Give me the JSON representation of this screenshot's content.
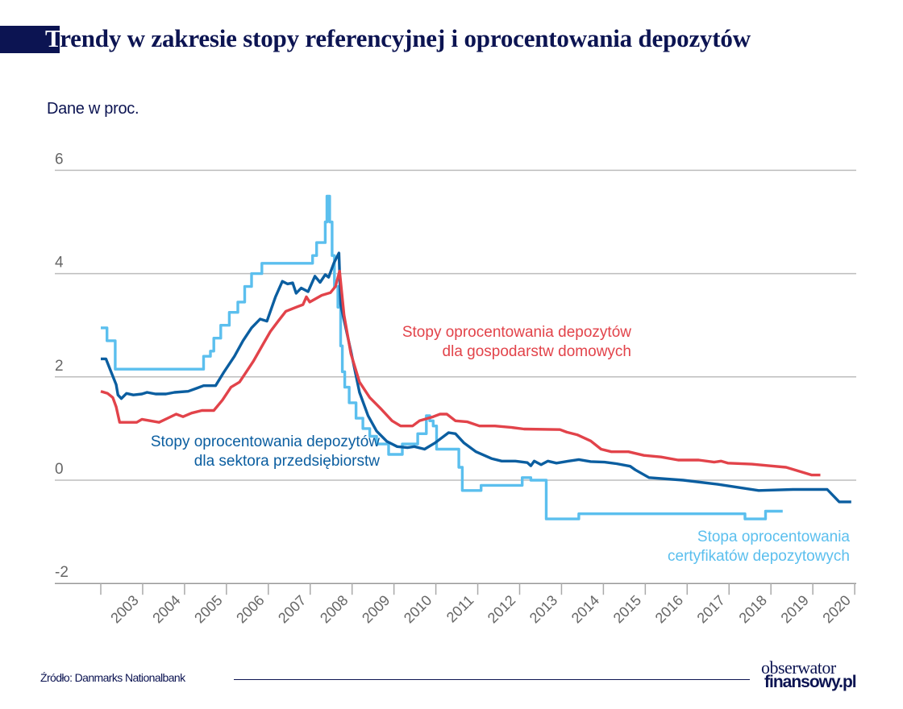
{
  "header": {
    "title_first_letter": "T",
    "title_rest": "rendy w zakresie stopy referencyjnej i oprocentowania depozytów",
    "subtitle": "Dane w proc."
  },
  "footer": {
    "source": "Źródło: Danmarks Nationalbank",
    "logo_line1": "obserwator",
    "logo_line2": "finansowy.pl"
  },
  "colors": {
    "title": "#0c1452",
    "households": "#e2434a",
    "corporate": "#0b5ea0",
    "certificates": "#5bbfee"
  },
  "chart_data": {
    "type": "line",
    "title": "Trendy w zakresie stopy referencyjnej i oprocentowania depozytów",
    "ylabel": "Dane w proc.",
    "xlabel": "",
    "ylim": [
      -2,
      6
    ],
    "xlim": [
      2002.0,
      2020.0
    ],
    "yticks": [
      6,
      4,
      2,
      0,
      -2
    ],
    "ytick_labels": [
      "6",
      "4",
      "2",
      "0",
      "-2"
    ],
    "xtick_labels": [
      "2003",
      "2004",
      "2005",
      "2006",
      "2007",
      "2008",
      "2009",
      "2010",
      "2011",
      "2012",
      "2013",
      "2014",
      "2015",
      "2016",
      "2017",
      "2018",
      "2019",
      "2020"
    ],
    "grid": true,
    "legend": "inline annotations",
    "series": [
      {
        "name": "Stopa oprocentowania certyfikatów depozytowych",
        "key": "certificates",
        "step": true,
        "annotation": [
          "Stopa oprocentowania",
          "certyfikatów depozytowych"
        ],
        "points": [
          [
            2002.0,
            2.95
          ],
          [
            2002.18,
            2.7
          ],
          [
            2002.42,
            2.15
          ],
          [
            2005.0,
            2.15
          ],
          [
            2005.0,
            2.4
          ],
          [
            2005.2,
            2.5
          ],
          [
            2005.3,
            2.75
          ],
          [
            2005.5,
            3.0
          ],
          [
            2005.75,
            3.25
          ],
          [
            2006.0,
            3.45
          ],
          [
            2006.2,
            3.75
          ],
          [
            2006.4,
            4.0
          ],
          [
            2006.7,
            4.2
          ],
          [
            2008.0,
            4.2
          ],
          [
            2008.18,
            4.35
          ],
          [
            2008.3,
            4.6
          ],
          [
            2008.55,
            5.0
          ],
          [
            2008.6,
            5.5
          ],
          [
            2008.68,
            5.0
          ],
          [
            2008.75,
            4.35
          ],
          [
            2008.82,
            3.75
          ],
          [
            2008.92,
            3.35
          ],
          [
            2009.0,
            2.6
          ],
          [
            2009.05,
            2.1
          ],
          [
            2009.12,
            1.8
          ],
          [
            2009.25,
            1.5
          ],
          [
            2009.45,
            1.2
          ],
          [
            2009.65,
            1.0
          ],
          [
            2009.85,
            0.85
          ],
          [
            2010.05,
            0.7
          ],
          [
            2010.4,
            0.5
          ],
          [
            2010.8,
            0.7
          ],
          [
            2011.25,
            0.9
          ],
          [
            2011.5,
            1.25
          ],
          [
            2011.6,
            1.15
          ],
          [
            2011.7,
            1.05
          ],
          [
            2011.8,
            0.6
          ],
          [
            2012.45,
            0.25
          ],
          [
            2012.55,
            -0.2
          ],
          [
            2013.1,
            -0.1
          ],
          [
            2014.3,
            0.05
          ],
          [
            2014.55,
            0.0
          ],
          [
            2015.0,
            -0.75
          ],
          [
            2015.95,
            -0.65
          ],
          [
            2020.8,
            -0.75
          ],
          [
            2021.4,
            -0.6
          ],
          [
            2021.9,
            -0.6
          ]
        ]
      },
      {
        "name": "Stopy oprocentowania depozytów dla sektora przedsiębiorstw",
        "key": "corporate",
        "step": false,
        "annotation": [
          "Stopy oprocentowania depozytów",
          "dla sektora przedsiębiorstw"
        ],
        "points": [
          [
            2002.0,
            2.35
          ],
          [
            2002.15,
            2.35
          ],
          [
            2002.3,
            2.1
          ],
          [
            2002.45,
            1.85
          ],
          [
            2002.5,
            1.65
          ],
          [
            2002.6,
            1.58
          ],
          [
            2002.75,
            1.68
          ],
          [
            2002.95,
            1.65
          ],
          [
            2003.2,
            1.67
          ],
          [
            2003.35,
            1.7
          ],
          [
            2003.6,
            1.67
          ],
          [
            2003.9,
            1.67
          ],
          [
            2004.15,
            1.7
          ],
          [
            2004.55,
            1.72
          ],
          [
            2004.8,
            1.78
          ],
          [
            2005.0,
            1.83
          ],
          [
            2005.35,
            1.83
          ],
          [
            2005.6,
            2.1
          ],
          [
            2005.9,
            2.4
          ],
          [
            2006.15,
            2.7
          ],
          [
            2006.4,
            2.95
          ],
          [
            2006.65,
            3.12
          ],
          [
            2006.85,
            3.08
          ],
          [
            2007.1,
            3.55
          ],
          [
            2007.3,
            3.85
          ],
          [
            2007.45,
            3.8
          ],
          [
            2007.6,
            3.82
          ],
          [
            2007.7,
            3.62
          ],
          [
            2007.85,
            3.72
          ],
          [
            2008.05,
            3.65
          ],
          [
            2008.25,
            3.95
          ],
          [
            2008.4,
            3.83
          ],
          [
            2008.55,
            3.98
          ],
          [
            2008.65,
            3.93
          ],
          [
            2008.8,
            4.2
          ],
          [
            2008.95,
            4.4
          ],
          [
            2009.0,
            3.4
          ],
          [
            2009.3,
            2.5
          ],
          [
            2009.55,
            1.7
          ],
          [
            2009.8,
            1.25
          ],
          [
            2010.05,
            0.95
          ],
          [
            2010.35,
            0.75
          ],
          [
            2010.65,
            0.65
          ],
          [
            2010.95,
            0.63
          ],
          [
            2011.15,
            0.65
          ],
          [
            2011.45,
            0.6
          ],
          [
            2011.75,
            0.72
          ],
          [
            2012.15,
            0.92
          ],
          [
            2012.35,
            0.9
          ],
          [
            2012.6,
            0.72
          ],
          [
            2012.95,
            0.55
          ],
          [
            2013.4,
            0.42
          ],
          [
            2013.7,
            0.37
          ],
          [
            2014.1,
            0.37
          ],
          [
            2014.45,
            0.34
          ],
          [
            2014.55,
            0.28
          ],
          [
            2014.65,
            0.37
          ],
          [
            2014.85,
            0.3
          ],
          [
            2015.05,
            0.37
          ],
          [
            2015.3,
            0.33
          ],
          [
            2015.65,
            0.37
          ],
          [
            2015.95,
            0.4
          ],
          [
            2016.3,
            0.36
          ],
          [
            2016.7,
            0.35
          ],
          [
            2017.05,
            0.32
          ],
          [
            2017.45,
            0.27
          ],
          [
            2017.6,
            0.2
          ],
          [
            2018.0,
            0.05
          ],
          [
            2019.0,
            0.0
          ],
          [
            2020.0,
            -0.08
          ],
          [
            2021.2,
            -0.2
          ],
          [
            2022.2,
            -0.18
          ],
          [
            2023.2,
            -0.18
          ],
          [
            2023.55,
            -0.42
          ],
          [
            2023.9,
            -0.42
          ]
        ]
      },
      {
        "name": "Stopy oprocentowania depozytów dla gospodarstw domowych",
        "key": "households",
        "step": false,
        "annotation": [
          "Stopy oprocentowania depozytów",
          "dla gospodarstw domowych"
        ],
        "points": [
          [
            2002.0,
            1.72
          ],
          [
            2002.2,
            1.68
          ],
          [
            2002.35,
            1.6
          ],
          [
            2002.45,
            1.42
          ],
          [
            2002.55,
            1.12
          ],
          [
            2002.85,
            1.12
          ],
          [
            2003.05,
            1.12
          ],
          [
            2003.2,
            1.18
          ],
          [
            2003.45,
            1.15
          ],
          [
            2003.7,
            1.12
          ],
          [
            2003.95,
            1.2
          ],
          [
            2004.2,
            1.28
          ],
          [
            2004.4,
            1.23
          ],
          [
            2004.65,
            1.3
          ],
          [
            2004.95,
            1.35
          ],
          [
            2005.3,
            1.35
          ],
          [
            2005.55,
            1.55
          ],
          [
            2005.8,
            1.8
          ],
          [
            2006.05,
            1.9
          ],
          [
            2006.25,
            2.1
          ],
          [
            2006.45,
            2.3
          ],
          [
            2006.75,
            2.65
          ],
          [
            2006.95,
            2.88
          ],
          [
            2007.2,
            3.1
          ],
          [
            2007.4,
            3.27
          ],
          [
            2007.7,
            3.35
          ],
          [
            2007.9,
            3.4
          ],
          [
            2008.0,
            3.55
          ],
          [
            2008.1,
            3.45
          ],
          [
            2008.45,
            3.58
          ],
          [
            2008.7,
            3.63
          ],
          [
            2008.85,
            3.75
          ],
          [
            2008.97,
            4.05
          ],
          [
            2009.1,
            3.2
          ],
          [
            2009.3,
            2.45
          ],
          [
            2009.55,
            1.9
          ],
          [
            2009.85,
            1.6
          ],
          [
            2010.15,
            1.4
          ],
          [
            2010.5,
            1.15
          ],
          [
            2010.75,
            1.05
          ],
          [
            2011.1,
            1.05
          ],
          [
            2011.3,
            1.15
          ],
          [
            2011.7,
            1.23
          ],
          [
            2011.9,
            1.28
          ],
          [
            2012.1,
            1.28
          ],
          [
            2012.35,
            1.15
          ],
          [
            2012.7,
            1.13
          ],
          [
            2013.05,
            1.05
          ],
          [
            2013.5,
            1.05
          ],
          [
            2014.0,
            1.02
          ],
          [
            2014.35,
            0.99
          ],
          [
            2015.4,
            0.98
          ],
          [
            2015.6,
            0.93
          ],
          [
            2015.9,
            0.88
          ],
          [
            2016.3,
            0.76
          ],
          [
            2016.6,
            0.6
          ],
          [
            2016.9,
            0.55
          ],
          [
            2017.4,
            0.55
          ],
          [
            2017.85,
            0.48
          ],
          [
            2018.35,
            0.45
          ],
          [
            2018.85,
            0.39
          ],
          [
            2019.45,
            0.39
          ],
          [
            2019.9,
            0.35
          ],
          [
            2020.1,
            0.37
          ],
          [
            2020.3,
            0.33
          ],
          [
            2021.0,
            0.31
          ],
          [
            2021.5,
            0.28
          ],
          [
            2022.0,
            0.25
          ],
          [
            2022.35,
            0.18
          ],
          [
            2022.75,
            0.1
          ],
          [
            2023.0,
            0.1
          ]
        ]
      }
    ]
  }
}
